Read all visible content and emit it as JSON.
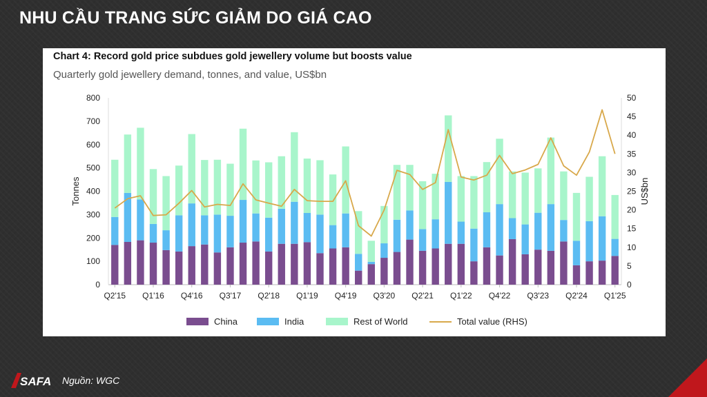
{
  "slide": {
    "title": "NHU CẦU TRANG SỨC GIẢM DO GIÁ CAO",
    "source": "Nguồn: WGC",
    "logo_text": "SAFA",
    "accent_color": "#c0171c"
  },
  "chart_data": {
    "type": "bar",
    "stacked": true,
    "title": "Chart 4: Record gold price subdues gold jewellery volume but boosts value",
    "subtitle": "Quarterly gold jewellery demand, tonnes, and value, US$bn",
    "ylabel": "Tonnes",
    "y2label": "US$bn",
    "ylim": [
      0,
      800
    ],
    "y2lim": [
      0,
      50
    ],
    "yticks": [
      "0",
      "100",
      "200",
      "300",
      "400",
      "500",
      "600",
      "700",
      "800"
    ],
    "y2ticks": [
      "0",
      "5",
      "10",
      "15",
      "20",
      "25",
      "30",
      "35",
      "40",
      "45",
      "50"
    ],
    "grid": false,
    "legend_position": "bottom",
    "categories": [
      "Q2'15",
      "Q3'15",
      "Q4'15",
      "Q1'16",
      "Q2'16",
      "Q3'16",
      "Q4'16",
      "Q1'17",
      "Q2'17",
      "Q3'17",
      "Q4'17",
      "Q1'18",
      "Q2'18",
      "Q3'18",
      "Q4'18",
      "Q1'19",
      "Q2'19",
      "Q3'19",
      "Q4'19",
      "Q1'20",
      "Q2'20",
      "Q3'20",
      "Q4'20",
      "Q1'21",
      "Q2'21",
      "Q3'21",
      "Q4'21",
      "Q1'22",
      "Q2'22",
      "Q3'22",
      "Q4'22",
      "Q1'23",
      "Q2'23",
      "Q3'23",
      "Q4'23",
      "Q1'24",
      "Q2'24",
      "Q3'24",
      "Q4'24",
      "Q1'25"
    ],
    "tick_labels": [
      "Q2'15",
      "Q1'16",
      "Q4'16",
      "Q3'17",
      "Q2'18",
      "Q1'19",
      "Q4'19",
      "Q3'20",
      "Q2'21",
      "Q1'22",
      "Q4'22",
      "Q3'23",
      "Q2'24",
      "Q1'25"
    ],
    "series": [
      {
        "name": "China",
        "color": "#7a4d8f",
        "values": [
          170,
          183,
          190,
          180,
          148,
          142,
          165,
          172,
          138,
          160,
          180,
          185,
          142,
          175,
          175,
          182,
          135,
          155,
          160,
          60,
          88,
          115,
          140,
          193,
          145,
          155,
          175,
          175,
          100,
          160,
          125,
          195,
          130,
          150,
          145,
          185,
          83,
          100,
          103,
          123
        ]
      },
      {
        "name": "India",
        "color": "#5bbcf2",
        "values": [
          120,
          210,
          175,
          80,
          85,
          155,
          183,
          125,
          162,
          135,
          183,
          120,
          145,
          150,
          180,
          125,
          165,
          100,
          145,
          72,
          10,
          62,
          138,
          125,
          93,
          125,
          265,
          95,
          140,
          150,
          220,
          90,
          128,
          158,
          200,
          92,
          105,
          172,
          190,
          73
        ]
      },
      {
        "name": "Rest of World",
        "color": "#a8f5cb",
        "values": [
          245,
          250,
          307,
          235,
          232,
          213,
          297,
          237,
          235,
          223,
          305,
          227,
          237,
          225,
          298,
          233,
          233,
          217,
          287,
          183,
          90,
          160,
          235,
          195,
          205,
          195,
          285,
          195,
          225,
          215,
          280,
          200,
          222,
          190,
          285,
          208,
          205,
          190,
          257,
          188
        ]
      }
    ],
    "line_series": {
      "name": "Total value (RHS)",
      "color": "#d8a84a",
      "axis": "right",
      "values": [
        20.5,
        23,
        23.8,
        18.5,
        18.7,
        21.8,
        25.2,
        20.8,
        21.5,
        21.2,
        27,
        22.7,
        21.8,
        21,
        25.5,
        22.5,
        22.3,
        22.3,
        27.8,
        15.8,
        13,
        20,
        30.6,
        29.5,
        25.5,
        27.3,
        41.5,
        28.8,
        28,
        29.3,
        34.6,
        29.7,
        30.7,
        32.2,
        39.3,
        31.8,
        29.3,
        35.5,
        46.8,
        35
      ]
    }
  }
}
